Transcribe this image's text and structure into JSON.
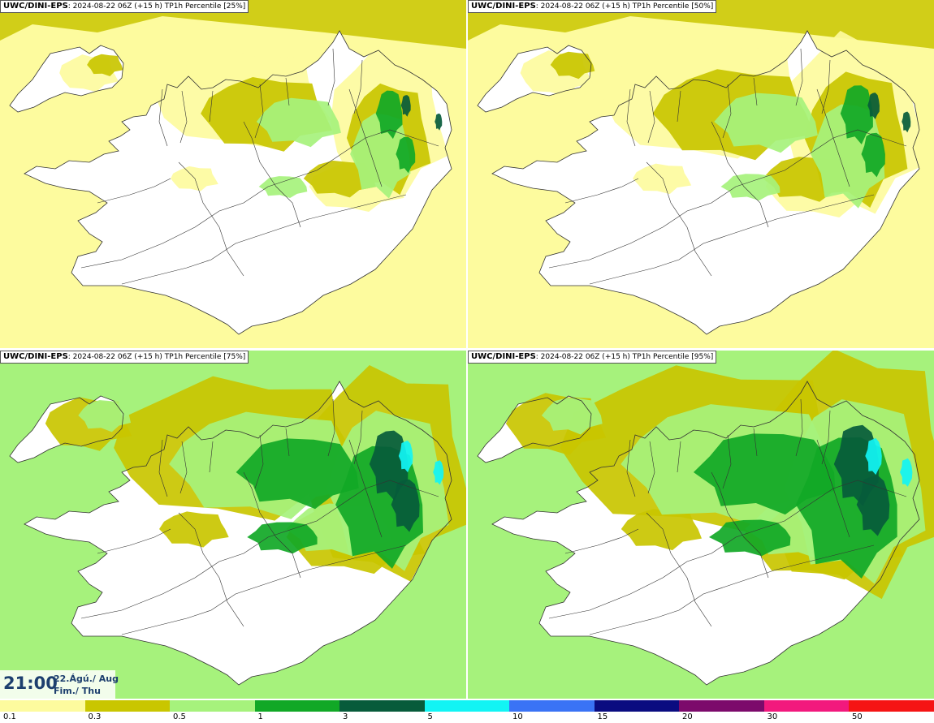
{
  "colors": {
    "bins": [
      "#fdfb9e",
      "#c9c600",
      "#a6f27c",
      "#11a826",
      "#075b3b",
      "#12f4f4",
      "#3a73f5",
      "#0a0c80",
      "#7c0a6b",
      "#f2197d",
      "#f51414"
    ],
    "land_fill": "#ffffff",
    "coast_line": "#333333",
    "sea_base": [
      "#fdfb9e",
      "#fdfb9e",
      "#a6f27c",
      "#a6f27c"
    ]
  },
  "panels": [
    {
      "source": "UWC/DINI-EPS",
      "run": ": 2024-08-22 06Z (+15 h)",
      "field": "TP1h Percentile [25%]"
    },
    {
      "source": "UWC/DINI-EPS",
      "run": ": 2024-08-22 06Z (+15 h)",
      "field": "TP1h Percentile [50%]"
    },
    {
      "source": "UWC/DINI-EPS",
      "run": ": 2024-08-22 06Z (+15 h)",
      "field": "TP1h Percentile [75%]"
    },
    {
      "source": "UWC/DINI-EPS",
      "run": ": 2024-08-22 06Z (+15 h)",
      "field": "TP1h Percentile [95%]"
    }
  ],
  "valid_time": {
    "time": "21:00",
    "date": "22.Ágú./ Aug",
    "day": "Fim./ Thu"
  },
  "legend": {
    "labels": [
      "0.1",
      "0.3",
      "0.5",
      "1",
      "3",
      "5",
      "10",
      "15",
      "20",
      "30",
      "50"
    ]
  }
}
